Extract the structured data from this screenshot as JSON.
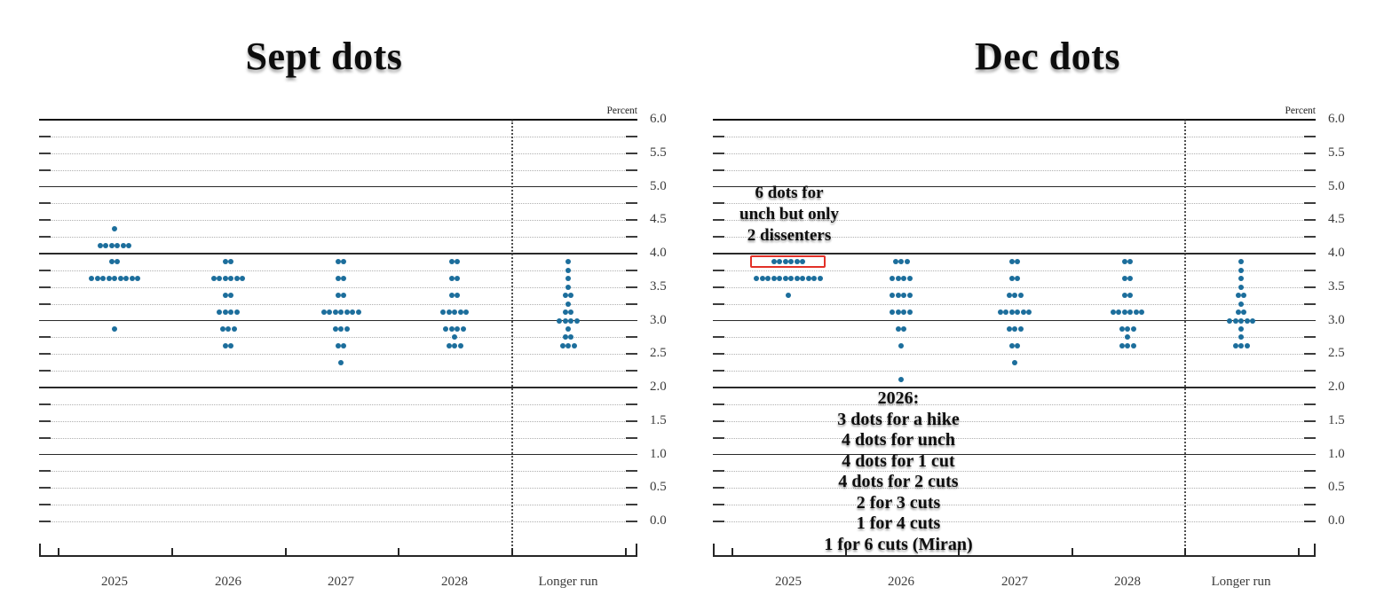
{
  "chart_data": [
    {
      "id": "sept",
      "type": "scatter",
      "title": "Sept dots",
      "unit_label": "Percent",
      "categories": [
        "2025",
        "2026",
        "2027",
        "2028",
        "Longer run"
      ],
      "ylim": [
        0.0,
        6.0
      ],
      "grid_step": 0.25,
      "ytick_labels": [
        "6.0",
        "5.5",
        "5.0",
        "4.5",
        "4.0",
        "3.5",
        "3.0",
        "2.5",
        "2.0",
        "1.5",
        "1.0",
        "0.5",
        "0.0"
      ],
      "legend_position": "none",
      "dot_color": "#1c6e9c",
      "series": [
        {
          "category": "2025",
          "dots": [
            [
              4.375,
              1
            ],
            [
              4.125,
              6
            ],
            [
              3.875,
              2
            ],
            [
              3.625,
              9
            ],
            [
              2.875,
              1
            ]
          ]
        },
        {
          "category": "2026",
          "dots": [
            [
              3.875,
              2
            ],
            [
              3.625,
              6
            ],
            [
              3.375,
              2
            ],
            [
              3.125,
              4
            ],
            [
              2.875,
              3
            ],
            [
              2.625,
              2
            ]
          ]
        },
        {
          "category": "2027",
          "dots": [
            [
              3.875,
              2
            ],
            [
              3.625,
              2
            ],
            [
              3.375,
              2
            ],
            [
              3.125,
              7
            ],
            [
              2.875,
              3
            ],
            [
              2.625,
              2
            ],
            [
              2.375,
              1
            ]
          ]
        },
        {
          "category": "2028",
          "dots": [
            [
              3.875,
              2
            ],
            [
              3.625,
              2
            ],
            [
              3.375,
              2
            ],
            [
              3.125,
              5
            ],
            [
              2.875,
              4
            ],
            [
              2.75,
              1
            ],
            [
              2.625,
              3
            ]
          ]
        },
        {
          "category": "Longer run",
          "dots": [
            [
              3.875,
              1
            ],
            [
              3.75,
              1
            ],
            [
              3.625,
              1
            ],
            [
              3.5,
              1
            ],
            [
              3.375,
              2
            ],
            [
              3.25,
              1
            ],
            [
              3.125,
              2
            ],
            [
              3.0,
              4
            ],
            [
              2.875,
              1
            ],
            [
              2.75,
              2
            ],
            [
              2.625,
              3
            ]
          ]
        }
      ],
      "annotations": []
    },
    {
      "id": "dec",
      "type": "scatter",
      "title": "Dec dots",
      "unit_label": "Percent",
      "categories": [
        "2025",
        "2026",
        "2027",
        "2028",
        "Longer run"
      ],
      "ylim": [
        0.0,
        6.0
      ],
      "grid_step": 0.25,
      "ytick_labels": [
        "6.0",
        "5.5",
        "5.0",
        "4.5",
        "4.0",
        "3.5",
        "3.0",
        "2.5",
        "2.0",
        "1.5",
        "1.0",
        "0.5",
        "0.0"
      ],
      "legend_position": "none",
      "dot_color": "#1c6e9c",
      "series": [
        {
          "category": "2025",
          "dots": [
            [
              3.875,
              6
            ],
            [
              3.625,
              12
            ],
            [
              3.375,
              1
            ]
          ]
        },
        {
          "category": "2026",
          "dots": [
            [
              3.875,
              3
            ],
            [
              3.625,
              4
            ],
            [
              3.375,
              4
            ],
            [
              3.125,
              4
            ],
            [
              2.875,
              2
            ],
            [
              2.625,
              1
            ],
            [
              2.125,
              1
            ]
          ]
        },
        {
          "category": "2027",
          "dots": [
            [
              3.875,
              2
            ],
            [
              3.625,
              2
            ],
            [
              3.375,
              3
            ],
            [
              3.125,
              6
            ],
            [
              2.875,
              3
            ],
            [
              2.625,
              2
            ],
            [
              2.375,
              1
            ]
          ]
        },
        {
          "category": "2028",
          "dots": [
            [
              3.875,
              2
            ],
            [
              3.625,
              2
            ],
            [
              3.375,
              2
            ],
            [
              3.125,
              6
            ],
            [
              2.875,
              3
            ],
            [
              2.75,
              1
            ],
            [
              2.625,
              3
            ]
          ]
        },
        {
          "category": "Longer run",
          "dots": [
            [
              3.875,
              1
            ],
            [
              3.75,
              1
            ],
            [
              3.625,
              1
            ],
            [
              3.5,
              1
            ],
            [
              3.375,
              2
            ],
            [
              3.25,
              1
            ],
            [
              3.125,
              2
            ],
            [
              3.0,
              5
            ],
            [
              2.875,
              1
            ],
            [
              2.75,
              1
            ],
            [
              2.625,
              3
            ]
          ]
        }
      ],
      "highlight": {
        "category": "2025",
        "value": 3.875,
        "count": 6,
        "color": "#e23128"
      },
      "annotations": [
        {
          "id": "unch-note",
          "lines": [
            "6 dots for",
            "unch but only",
            "2 dissenters"
          ]
        },
        {
          "id": "cuts-note",
          "lines": [
            "2026:",
            "3 dots for a hike",
            "4 dots for unch",
            "4 dots for 1 cut",
            "4 dots for 2 cuts",
            "2 for 3 cuts",
            "1 for 4 cuts",
            "1 for 6 cuts (Miran)"
          ]
        }
      ]
    }
  ]
}
